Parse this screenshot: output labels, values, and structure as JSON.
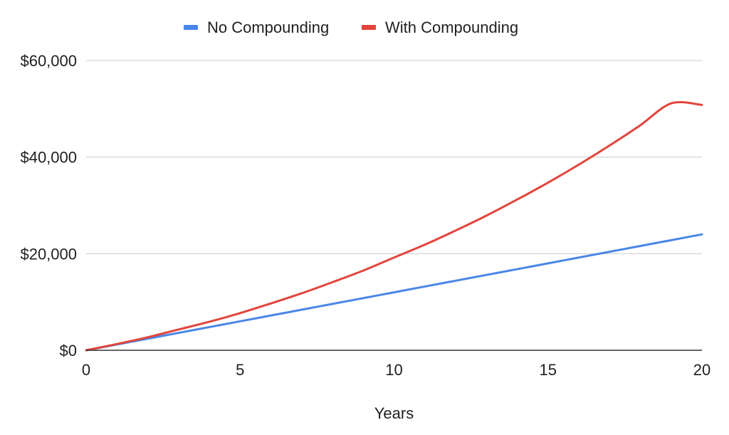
{
  "chart_data": {
    "type": "line",
    "title": "",
    "xlabel": "Years",
    "ylabel": "",
    "xlim": [
      0,
      20
    ],
    "ylim": [
      0,
      60000
    ],
    "x_ticks": [
      0,
      5,
      10,
      15,
      20
    ],
    "x_tick_labels": [
      "0",
      "5",
      "10",
      "15",
      "20"
    ],
    "y_ticks": [
      0,
      20000,
      40000,
      60000
    ],
    "y_tick_labels": [
      "$0",
      "$20,000",
      "$40,000",
      "$60,000"
    ],
    "grid": "horizontal",
    "legend_position": "top",
    "x": [
      0,
      1,
      2,
      3,
      4,
      5,
      6,
      7,
      8,
      9,
      10,
      11,
      12,
      13,
      14,
      15,
      16,
      17,
      18,
      19,
      20
    ],
    "series": [
      {
        "name": "No Compounding",
        "color": "#4a86e8",
        "values": [
          0,
          1200,
          2400,
          3600,
          4800,
          6000,
          7200,
          8400,
          9600,
          10800,
          12000,
          13200,
          14400,
          15600,
          16800,
          18000,
          19200,
          20400,
          21600,
          22800,
          24000
        ]
      },
      {
        "name": "With Compounding",
        "color": "#e2453c",
        "values": [
          0,
          1300,
          2700,
          4300,
          5900,
          7700,
          9700,
          11800,
          14100,
          16500,
          19200,
          22000,
          25100,
          28400,
          32000,
          35800,
          39900,
          44300,
          49000,
          54100,
          50800
        ]
      }
    ]
  }
}
